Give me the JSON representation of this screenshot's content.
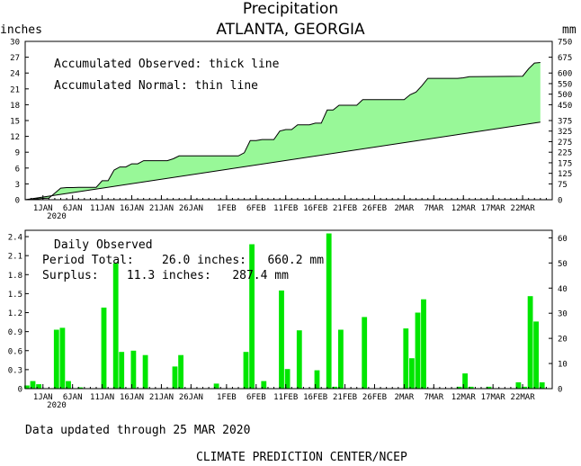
{
  "chart_data": [
    {
      "type": "area",
      "title": "Precipitation",
      "subtitle": "ATLANTA, GEORGIA",
      "ylabel_left": "inches",
      "ylabel_right": "mm",
      "ylim": [
        0,
        30
      ],
      "y2lim": [
        0,
        750
      ],
      "yticks": [
        "0",
        "3",
        "6",
        "9",
        "12",
        "15",
        "18",
        "21",
        "24",
        "27",
        "30"
      ],
      "y2ticks": [
        "0",
        "75",
        "125",
        "175",
        "225",
        "275",
        "325",
        "375",
        "450",
        "500",
        "550",
        "600",
        "675",
        "750"
      ],
      "annotations": [
        "Accumulated Observed: thick line",
        "Accumulated Normal: thin line"
      ],
      "x_start": "2019-12-29",
      "x_end": "2020-03-27",
      "x_tick_labels": [
        {
          "date": "2020-01-01",
          "label": "1JAN"
        },
        {
          "date": "2020-01-06",
          "label": "6JAN"
        },
        {
          "date": "2020-01-11",
          "label": "11JAN"
        },
        {
          "date": "2020-01-16",
          "label": "16JAN"
        },
        {
          "date": "2020-01-21",
          "label": "21JAN"
        },
        {
          "date": "2020-01-26",
          "label": "26JAN"
        },
        {
          "date": "2020-02-01",
          "label": "1FEB"
        },
        {
          "date": "2020-02-06",
          "label": "6FEB"
        },
        {
          "date": "2020-02-11",
          "label": "11FEB"
        },
        {
          "date": "2020-02-16",
          "label": "16FEB"
        },
        {
          "date": "2020-02-21",
          "label": "21FEB"
        },
        {
          "date": "2020-02-26",
          "label": "26FEB"
        },
        {
          "date": "2020-03-02",
          "label": "2MAR"
        },
        {
          "date": "2020-03-07",
          "label": "7MAR"
        },
        {
          "date": "2020-03-12",
          "label": "12MAR"
        },
        {
          "date": "2020-03-17",
          "label": "17MAR"
        },
        {
          "date": "2020-03-22",
          "label": "22MAR"
        }
      ],
      "year_label": "2020",
      "fill_color": "#98f898",
      "series": [
        {
          "name": "Accumulated Observed",
          "points": [
            [
              "2019-12-29",
              0.0
            ],
            [
              "2019-12-30",
              0.05
            ],
            [
              "2019-12-31",
              0.15
            ],
            [
              "2020-01-01",
              0.25
            ],
            [
              "2020-01-02",
              0.3
            ],
            [
              "2020-01-03",
              1.25
            ],
            [
              "2020-01-04",
              2.2
            ],
            [
              "2020-01-05",
              2.3
            ],
            [
              "2020-01-06",
              2.3
            ],
            [
              "2020-01-07",
              2.35
            ],
            [
              "2020-01-10",
              2.35
            ],
            [
              "2020-01-11",
              3.6
            ],
            [
              "2020-01-12",
              3.6
            ],
            [
              "2020-01-13",
              5.6
            ],
            [
              "2020-01-14",
              6.2
            ],
            [
              "2020-01-15",
              6.2
            ],
            [
              "2020-01-16",
              6.8
            ],
            [
              "2020-01-17",
              6.8
            ],
            [
              "2020-01-18",
              7.4
            ],
            [
              "2020-01-22",
              7.4
            ],
            [
              "2020-01-23",
              7.75
            ],
            [
              "2020-01-24",
              8.3
            ],
            [
              "2020-02-03",
              8.3
            ],
            [
              "2020-02-04",
              8.9
            ],
            [
              "2020-02-05",
              11.2
            ],
            [
              "2020-02-06",
              11.2
            ],
            [
              "2020-02-07",
              11.4
            ],
            [
              "2020-02-09",
              11.4
            ],
            [
              "2020-02-10",
              13.0
            ],
            [
              "2020-02-11",
              13.3
            ],
            [
              "2020-02-12",
              13.3
            ],
            [
              "2020-02-13",
              14.2
            ],
            [
              "2020-02-15",
              14.2
            ],
            [
              "2020-02-16",
              14.5
            ],
            [
              "2020-02-17",
              14.5
            ],
            [
              "2020-02-18",
              17.0
            ],
            [
              "2020-02-19",
              17.0
            ],
            [
              "2020-02-20",
              17.9
            ],
            [
              "2020-02-23",
              17.9
            ],
            [
              "2020-02-24",
              18.95
            ],
            [
              "2020-03-02",
              18.95
            ],
            [
              "2020-03-03",
              19.9
            ],
            [
              "2020-03-04",
              20.4
            ],
            [
              "2020-03-05",
              21.6
            ],
            [
              "2020-03-06",
              23.0
            ],
            [
              "2020-03-07",
              23.0
            ],
            [
              "2020-03-11",
              23.0
            ],
            [
              "2020-03-12",
              23.1
            ],
            [
              "2020-03-13",
              23.3
            ],
            [
              "2020-03-22",
              23.4
            ],
            [
              "2020-03-23",
              24.8
            ],
            [
              "2020-03-24",
              25.9
            ],
            [
              "2020-03-25",
              26.0
            ]
          ]
        },
        {
          "name": "Accumulated Normal",
          "points": [
            [
              "2019-12-29",
              0.0
            ],
            [
              "2020-03-25",
              14.7
            ]
          ]
        }
      ]
    },
    {
      "type": "bar",
      "ylim": [
        0,
        2.5
      ],
      "y2lim": [
        0,
        63
      ],
      "yticks": [
        "0",
        "0.3",
        "0.6",
        "0.9",
        "1.2",
        "1.5",
        "1.8",
        "2.1",
        "2.4"
      ],
      "y2ticks": [
        "0",
        "10",
        "20",
        "30",
        "40",
        "50",
        "60"
      ],
      "bar_color": "#00e600",
      "annotations": [
        "Daily Observed",
        "Period Total:    26.0 inches:   660.2 mm",
        "Surplus:    11.3 inches:   287.4 mm"
      ],
      "series": [
        {
          "name": "Daily Observed",
          "points": [
            [
              "2019-12-29",
              0.05
            ],
            [
              "2019-12-30",
              0.12
            ],
            [
              "2019-12-31",
              0.07
            ],
            [
              "2020-01-03",
              0.93
            ],
            [
              "2020-01-04",
              0.96
            ],
            [
              "2020-01-05",
              0.12
            ],
            [
              "2020-01-07",
              0.02
            ],
            [
              "2020-01-11",
              1.28
            ],
            [
              "2020-01-13",
              1.98
            ],
            [
              "2020-01-14",
              0.58
            ],
            [
              "2020-01-16",
              0.6
            ],
            [
              "2020-01-18",
              0.53
            ],
            [
              "2020-01-23",
              0.35
            ],
            [
              "2020-01-24",
              0.53
            ],
            [
              "2020-01-30",
              0.08
            ],
            [
              "2020-02-04",
              0.58
            ],
            [
              "2020-02-05",
              2.28
            ],
            [
              "2020-02-07",
              0.12
            ],
            [
              "2020-02-10",
              1.55
            ],
            [
              "2020-02-11",
              0.31
            ],
            [
              "2020-02-13",
              0.92
            ],
            [
              "2020-02-16",
              0.29
            ],
            [
              "2020-02-18",
              2.45
            ],
            [
              "2020-02-19",
              0.03
            ],
            [
              "2020-02-20",
              0.93
            ],
            [
              "2020-02-24",
              1.13
            ],
            [
              "2020-03-02",
              0.95
            ],
            [
              "2020-03-03",
              0.48
            ],
            [
              "2020-03-04",
              1.2
            ],
            [
              "2020-03-05",
              1.41
            ],
            [
              "2020-03-11",
              0.03
            ],
            [
              "2020-03-12",
              0.24
            ],
            [
              "2020-03-13",
              0.03
            ],
            [
              "2020-03-16",
              0.03
            ],
            [
              "2020-03-21",
              0.1
            ],
            [
              "2020-03-22",
              0.03
            ],
            [
              "2020-03-23",
              1.46
            ],
            [
              "2020-03-24",
              1.06
            ],
            [
              "2020-03-25",
              0.1
            ]
          ]
        }
      ]
    }
  ],
  "footer": {
    "updated": "Data updated through 25 MAR 2020",
    "credit": "CLIMATE PREDICTION CENTER/NCEP"
  }
}
